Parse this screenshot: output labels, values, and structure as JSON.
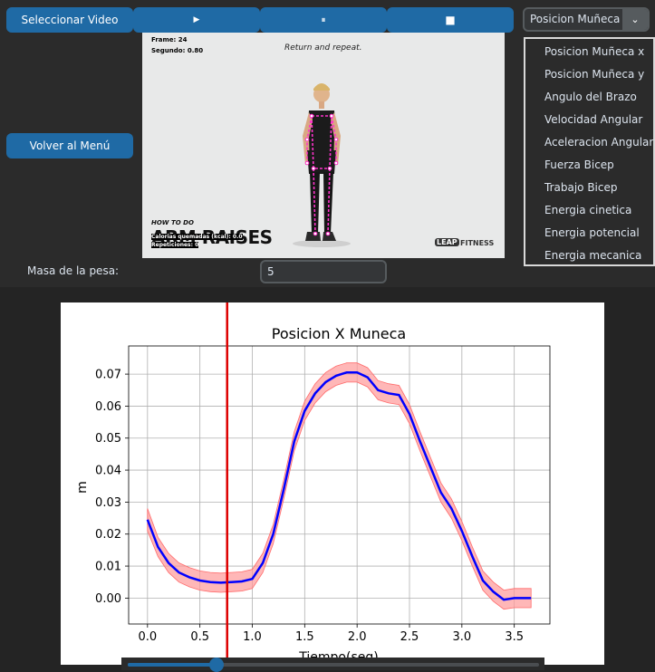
{
  "toolbar": {
    "select_video_label": "Seleccionar Video",
    "play_icon": "▶",
    "pause_icon": "⏸",
    "stop_icon": "■",
    "back_to_menu_label": "Volver al Menú"
  },
  "video": {
    "frame_text": "Frame: 24",
    "second_text": "Segundo: 0.80",
    "caption": "Return and repeat.",
    "how_to_do": "HOW TO DO",
    "exercise_name": "ARM RAISES",
    "calories_text": "Calorias quemadas (kcal): 0.0",
    "reps_text": "Repeticiones: 0",
    "brand_badge": "LEAP",
    "brand_name": "FITNESS"
  },
  "dropdown": {
    "selected": "Posicion Muñeca",
    "options": [
      "Posicion Muñeca x",
      "Posicion Muñeca y",
      "Angulo del Brazo",
      "Velocidad Angular",
      "Aceleracion Angular",
      "Fuerza Bicep",
      "Trabajo Bicep",
      "Energia cinetica",
      "Energia potencial",
      "Energia mecanica"
    ]
  },
  "mass": {
    "label": "Masa de la pesa:",
    "value": "5"
  },
  "colors": {
    "accent": "#1f6aa5",
    "line": "#0000ff",
    "band": "#ff9999",
    "marker": "#dd0000"
  },
  "slider": {
    "value_fraction": 0.215
  },
  "chart_data": {
    "type": "line",
    "title": "Posicion X Muneca",
    "xlabel": "Tiempo(seg)",
    "ylabel": "m",
    "xlim": [
      -0.18,
      3.84
    ],
    "ylim": [
      -0.0081,
      0.0788
    ],
    "xticks": [
      0.0,
      0.5,
      1.0,
      1.5,
      2.0,
      2.5,
      3.0,
      3.5
    ],
    "yticks": [
      0.0,
      0.01,
      0.02,
      0.03,
      0.04,
      0.05,
      0.06,
      0.07
    ],
    "xtick_labels": [
      "0.0",
      "0.5",
      "1.0",
      "1.5",
      "2.0",
      "2.5",
      "3.0",
      "3.5"
    ],
    "ytick_labels": [
      "0.00",
      "0.01",
      "0.02",
      "0.03",
      "0.04",
      "0.05",
      "0.06",
      "0.07"
    ],
    "grid": true,
    "marker_x": 0.76,
    "series": [
      {
        "x": [
          0.0,
          0.1,
          0.2,
          0.3,
          0.4,
          0.5,
          0.6,
          0.7,
          0.8,
          0.9,
          1.0,
          1.1,
          1.2,
          1.3,
          1.4,
          1.5,
          1.6,
          1.7,
          1.8,
          1.9,
          2.0,
          2.1,
          2.2,
          2.3,
          2.4,
          2.5,
          2.6,
          2.7,
          2.8,
          2.9,
          3.0,
          3.1,
          3.2,
          3.3,
          3.4,
          3.5,
          3.6,
          3.66
        ],
        "y": [
          0.0245,
          0.016,
          0.011,
          0.008,
          0.0065,
          0.0055,
          0.005,
          0.0048,
          0.005,
          0.0052,
          0.006,
          0.011,
          0.02,
          0.034,
          0.049,
          0.0585,
          0.064,
          0.0675,
          0.0695,
          0.0705,
          0.0705,
          0.069,
          0.065,
          0.064,
          0.0635,
          0.0575,
          0.049,
          0.041,
          0.033,
          0.028,
          0.021,
          0.013,
          0.0055,
          0.002,
          -0.0005,
          0.0,
          0.0,
          0.0
        ],
        "band_lower": [
          0.021,
          0.013,
          0.008,
          0.005,
          0.0035,
          0.0025,
          0.002,
          0.0018,
          0.002,
          0.0022,
          0.003,
          0.008,
          0.017,
          0.031,
          0.046,
          0.0555,
          0.061,
          0.0645,
          0.0665,
          0.0675,
          0.0675,
          0.066,
          0.062,
          0.061,
          0.0605,
          0.0545,
          0.046,
          0.038,
          0.03,
          0.025,
          0.018,
          0.01,
          0.0025,
          -0.001,
          -0.0035,
          -0.003,
          -0.003,
          -0.003
        ],
        "band_upper": [
          0.028,
          0.019,
          0.014,
          0.011,
          0.0095,
          0.0085,
          0.008,
          0.0078,
          0.008,
          0.0082,
          0.009,
          0.014,
          0.023,
          0.037,
          0.052,
          0.0615,
          0.067,
          0.0705,
          0.0725,
          0.0735,
          0.0735,
          0.072,
          0.068,
          0.067,
          0.0665,
          0.0605,
          0.052,
          0.044,
          0.036,
          0.031,
          0.024,
          0.016,
          0.0085,
          0.005,
          0.0025,
          0.003,
          0.003,
          0.003
        ]
      }
    ]
  }
}
